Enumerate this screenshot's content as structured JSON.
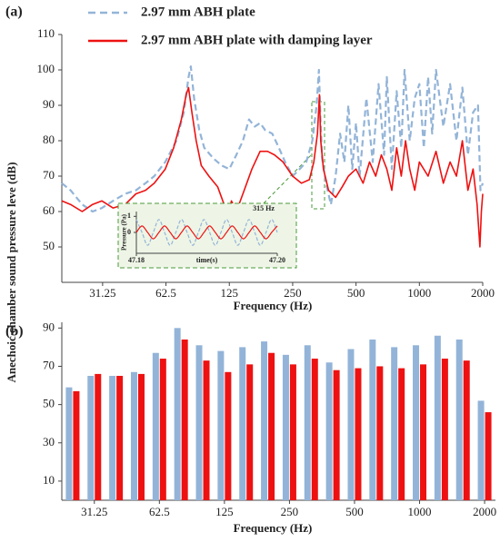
{
  "ylabel": "Anechoic chamber sound pressure leve (dB)",
  "chart_data": [
    {
      "type": "line",
      "panel": "(a)",
      "xlabel": "Frequency (Hz)",
      "xlog": true,
      "xlim": [
        20,
        2000
      ],
      "ylim": [
        40,
        110
      ],
      "xticks": [
        31.25,
        62.5,
        125,
        250,
        500,
        1000,
        2000
      ],
      "yticks": [
        50,
        60,
        70,
        80,
        90,
        100,
        110
      ],
      "series": [
        {
          "name": "2.97 mm ABH plate",
          "color": "#93b4d8",
          "dash": true,
          "x": [
            20,
            22,
            25,
            28,
            31,
            35,
            40,
            45,
            50,
            55,
            62,
            70,
            76,
            80,
            82,
            85,
            90,
            95,
            105,
            115,
            125,
            135,
            145,
            155,
            165,
            175,
            185,
            200,
            215,
            230,
            250,
            270,
            290,
            310,
            325,
            333,
            338,
            345,
            360,
            380,
            400,
            420,
            440,
            460,
            480,
            500,
            520,
            560,
            600,
            640,
            680,
            700,
            740,
            780,
            820,
            850,
            900,
            950,
            1000,
            1050,
            1100,
            1150,
            1200,
            1300,
            1400,
            1500,
            1600,
            1700,
            1800,
            1900,
            1950,
            2000
          ],
          "values": [
            68,
            66,
            62,
            60,
            61,
            63,
            65,
            66,
            68,
            70,
            74,
            80,
            88,
            98,
            101,
            92,
            83,
            78,
            75,
            73,
            72,
            76,
            80,
            86,
            84,
            85,
            83,
            82,
            78,
            74,
            70,
            72,
            74,
            80,
            90,
            100,
            88,
            75,
            68,
            62,
            70,
            82,
            74,
            90,
            72,
            85,
            70,
            92,
            74,
            96,
            76,
            98,
            72,
            94,
            78,
            100,
            80,
            92,
            96,
            78,
            98,
            82,
            100,
            84,
            96,
            80,
            95,
            76,
            88,
            90,
            66,
            68
          ]
        },
        {
          "name": "2.97 mm ABH plate with damping layer",
          "color": "#ee1111",
          "dash": false,
          "x": [
            20,
            22,
            25,
            28,
            31,
            35,
            40,
            45,
            50,
            55,
            62,
            68,
            74,
            78,
            80,
            83,
            87,
            92,
            100,
            110,
            118,
            122,
            128,
            135,
            145,
            160,
            175,
            190,
            205,
            225,
            250,
            275,
            300,
            315,
            328,
            335,
            340,
            350,
            370,
            400,
            430,
            460,
            500,
            540,
            580,
            620,
            660,
            700,
            740,
            780,
            820,
            860,
            900,
            950,
            1000,
            1100,
            1200,
            1300,
            1400,
            1500,
            1600,
            1700,
            1800,
            1880,
            1940,
            1970,
            2000
          ],
          "values": [
            63,
            62,
            60,
            62,
            63,
            61,
            62,
            65,
            66,
            68,
            72,
            78,
            86,
            93,
            95,
            88,
            80,
            73,
            70,
            67,
            62,
            58,
            63,
            60,
            65,
            72,
            77,
            77,
            76,
            74,
            70,
            68,
            69,
            74,
            82,
            93,
            80,
            72,
            66,
            64,
            67,
            70,
            72,
            68,
            74,
            70,
            76,
            72,
            66,
            78,
            70,
            80,
            72,
            66,
            74,
            70,
            77,
            68,
            74,
            70,
            80,
            66,
            72,
            62,
            50,
            60,
            65
          ]
        }
      ]
    },
    {
      "type": "line",
      "ylabel": "Pressure (Pa)",
      "xlabel": "time(s)",
      "annotation": "315 Hz",
      "xlim": [
        47.18,
        47.2
      ],
      "ylim": [
        -1.3,
        1.3
      ],
      "xticks": [
        {
          "value": 47.18,
          "label": "47.18"
        },
        {
          "value": 47.2,
          "label": "47.20"
        }
      ],
      "yticks": [
        0,
        1
      ],
      "series": [
        {
          "color": "#93b4d8",
          "dash": true,
          "x": [
            47.18,
            47.1808,
            47.1816,
            47.1824,
            47.1832,
            47.184,
            47.1848,
            47.1856,
            47.1864,
            47.1872,
            47.188,
            47.1888,
            47.1896,
            47.1904,
            47.1912,
            47.192,
            47.1928,
            47.1936,
            47.1944,
            47.1952,
            47.196,
            47.1968,
            47.1976,
            47.1984,
            47.1992,
            47.2
          ],
          "values": [
            0.8,
            0,
            -0.8,
            0,
            0.8,
            0,
            -0.8,
            0,
            0.8,
            0,
            -0.8,
            0,
            0.8,
            0,
            -0.8,
            0,
            0.8,
            0,
            -0.8,
            0,
            0.8,
            0,
            -0.8,
            0,
            0.8,
            0
          ]
        },
        {
          "color": "#ee1111",
          "dash": false,
          "x": [
            47.18,
            47.1808,
            47.1816,
            47.1824,
            47.1832,
            47.184,
            47.1848,
            47.1856,
            47.1864,
            47.1872,
            47.188,
            47.1888,
            47.1896,
            47.1904,
            47.1912,
            47.192,
            47.1928,
            47.1936,
            47.1944,
            47.1952,
            47.196,
            47.1968,
            47.1976,
            47.1984,
            47.1992,
            47.2
          ],
          "values": [
            0,
            0.4,
            0,
            -0.4,
            0,
            0.4,
            0,
            -0.4,
            0,
            0.4,
            0,
            -0.4,
            0,
            0.4,
            0,
            -0.4,
            0,
            0.4,
            0,
            -0.4,
            0,
            0.4,
            0,
            -0.4,
            0,
            0.4
          ]
        }
      ]
    },
    {
      "type": "bar",
      "panel": "(b)",
      "xlabel": "Frequency (Hz)",
      "categories": [
        null,
        "31.25",
        null,
        null,
        "62.5",
        null,
        null,
        "125",
        null,
        null,
        "250",
        null,
        null,
        "500",
        null,
        null,
        "1000",
        null,
        null,
        "2000"
      ],
      "ylim": [
        0,
        93
      ],
      "yticks": [
        10,
        30,
        50,
        70,
        90
      ],
      "series": [
        {
          "color": "#93b4d8",
          "values": [
            59,
            65,
            65,
            67,
            77,
            90,
            81,
            78,
            80,
            83,
            76,
            81,
            72,
            79,
            84,
            80,
            81,
            86,
            84,
            52
          ]
        },
        {
          "color": "#ee1111",
          "values": [
            57,
            66,
            65,
            66,
            74,
            84,
            73,
            67,
            71,
            77,
            71,
            74,
            68,
            69,
            70,
            69,
            71,
            74,
            73,
            46
          ]
        }
      ]
    }
  ]
}
